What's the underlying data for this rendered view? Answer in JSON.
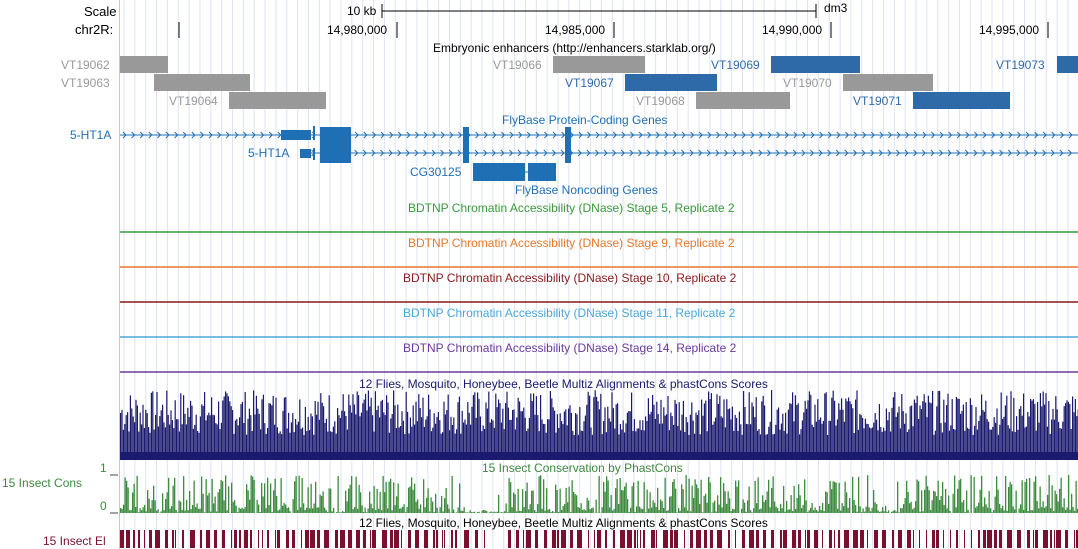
{
  "ruler": {
    "scale_label": "Scale",
    "scale_bar": "10 kb",
    "assembly": "dm3",
    "chrom_label": "chr2R:",
    "positions": [
      "14,980,000",
      "14,985,000",
      "14,990,000",
      "14,995,000"
    ]
  },
  "enhancers": {
    "title": "Embryonic enhancers (http://enhancers.starklab.org/)",
    "gray_color": "#999999",
    "blue_color": "#2f6aa8",
    "items": [
      {
        "name": "VT19062",
        "color": "gray"
      },
      {
        "name": "VT19063",
        "color": "gray"
      },
      {
        "name": "VT19064",
        "color": "gray"
      },
      {
        "name": "VT19066",
        "color": "gray"
      },
      {
        "name": "VT19067",
        "color": "blue"
      },
      {
        "name": "VT19068",
        "color": "gray"
      },
      {
        "name": "VT19069",
        "color": "blue"
      },
      {
        "name": "VT19070",
        "color": "gray"
      },
      {
        "name": "VT19071",
        "color": "blue"
      },
      {
        "name": "VT19073",
        "color": "blue"
      }
    ]
  },
  "genes": {
    "coding_title": "FlyBase Protein-Coding Genes",
    "noncoding_title": "FlyBase Noncoding Genes",
    "gene1": "5-HT1A",
    "gene2": "5-HT1A",
    "gene3": "CG30125",
    "color": "#1f6fb5"
  },
  "dnase": [
    {
      "title": "BDTNP Chromatin Accessibility (DNase) Stage 5, Replicate 2",
      "color": "#3a9a3a"
    },
    {
      "title": "BDTNP Chromatin Accessibility (DNase) Stage 9, Replicate 2",
      "color": "#e8782a"
    },
    {
      "title": "BDTNP Chromatin Accessibility (DNase) Stage 10, Replicate 2",
      "color": "#8b1a1a"
    },
    {
      "title": "BDTNP Chromatin Accessibility (DNase) Stage 11, Replicate 2",
      "color": "#4aa8d8"
    },
    {
      "title": "BDTNP Chromatin Accessibility (DNase) Stage 14, Replicate 2",
      "color": "#6a3a9e"
    }
  ],
  "multiz": {
    "title": "12 Flies, Mosquito, Honeybee, Beetle Multiz Alignments & phastCons Scores",
    "color": "#1a1a6e"
  },
  "cons": {
    "title": "15 Insect Conservation by PhastCons",
    "label": "15 Insect Cons",
    "max_label": "1",
    "min_label": "0",
    "color": "#3e8a3e"
  },
  "el": {
    "title": "12 Flies, Mosquito, Honeybee, Beetle Multiz Alignments & phastCons Scores",
    "label": "15 Insect El",
    "color": "#7a1030"
  }
}
